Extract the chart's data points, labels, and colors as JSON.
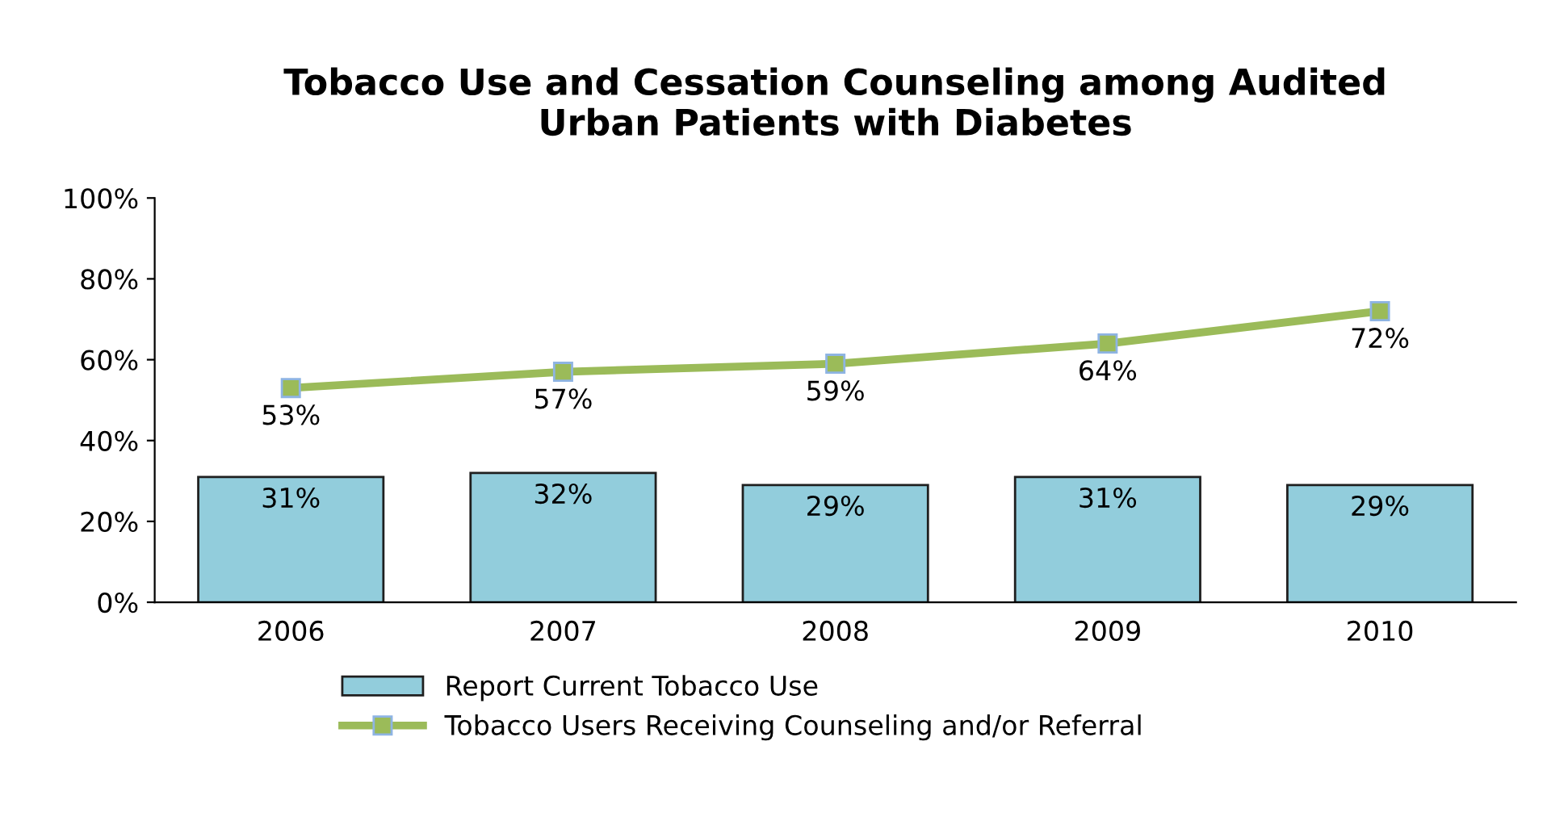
{
  "chart_data": {
    "type": "bar",
    "title": "Tobacco Use and Cessation Counseling among Audited\nUrban Patients with Diabetes",
    "categories": [
      "2006",
      "2007",
      "2008",
      "2009",
      "2010"
    ],
    "series": [
      {
        "name": "Report Current Tobacco Use",
        "color": "#92cddc",
        "values": [
          31,
          32,
          29,
          31,
          29
        ],
        "value_labels": [
          "31%",
          "32%",
          "29%",
          "31%",
          "29%"
        ]
      },
      {
        "name": "Tobacco Users Receiving Counseling and/or Referral",
        "type": "line",
        "color": "#9bbb59",
        "marker": "square",
        "values": [
          53,
          57,
          59,
          64,
          72
        ],
        "value_labels": [
          "53%",
          "57%",
          "59%",
          "64%",
          "72%"
        ]
      }
    ],
    "ylim": [
      0,
      100
    ],
    "yticks": [
      {
        "value": 0,
        "label": "0%"
      },
      {
        "value": 20,
        "label": "20%"
      },
      {
        "value": 40,
        "label": "40%"
      },
      {
        "value": 60,
        "label": "60%"
      },
      {
        "value": 80,
        "label": "80%"
      },
      {
        "value": 100,
        "label": "100%"
      }
    ],
    "grid": false,
    "legend": "bottom"
  }
}
